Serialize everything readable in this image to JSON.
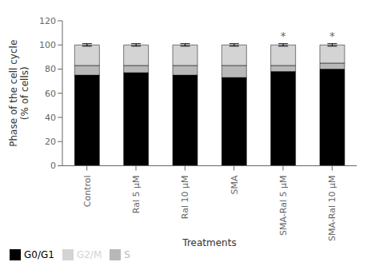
{
  "chart_data": {
    "type": "bar",
    "stacked": true,
    "xlabel": "Treatments",
    "ylabel": "Phase of the cell cycle\n(% of cells)",
    "categories": [
      "Control",
      "Ral 5 μM",
      "Ral 10 μM",
      "SMA",
      "SMA-Ral 5 μM",
      "SMA-Ral 10 μM"
    ],
    "series": [
      {
        "name": "G0/G1",
        "color": "#000000",
        "values": [
          75,
          77,
          75,
          73,
          78,
          80
        ]
      },
      {
        "name": "S",
        "color": "#b8b8b8",
        "values": [
          8,
          6,
          8,
          10,
          5,
          5
        ]
      },
      {
        "name": "G2/M",
        "color": "#d4d4d4",
        "values": [
          17,
          17,
          17,
          17,
          17,
          15
        ]
      }
    ],
    "error_bars": [
      1.0,
      1.0,
      1.0,
      1.0,
      1.0,
      1.0
    ],
    "annotations": [
      {
        "category": "SMA-Ral 5 μM",
        "text": "*"
      },
      {
        "category": "SMA-Ral 10 μM",
        "text": "*"
      }
    ],
    "ylim": [
      0,
      120
    ],
    "yticks": [
      0,
      20,
      40,
      60,
      80,
      100,
      120
    ],
    "grid": false,
    "legend": "lower left"
  }
}
